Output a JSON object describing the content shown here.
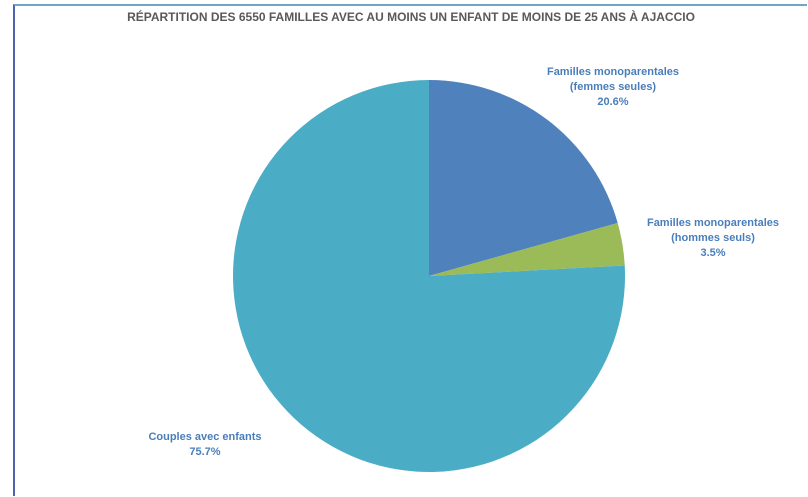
{
  "chart_data": {
    "type": "pie",
    "title": "RÉPARTITION DES 6550 FAMILLES AVEC AU MOINS UN ENFANT DE MOINS DE 25 ANS À AJACCIO",
    "categories": [
      "Familles monoparentales (femmes seules)",
      "Familles monoparentales (hommes seuls)",
      "Couples avec enfants"
    ],
    "values": [
      20.6,
      3.5,
      75.7
    ],
    "value_labels": [
      "20.6%",
      "3.5%",
      "75.7%"
    ],
    "colors": [
      "#4f81bd",
      "#9bbb59",
      "#4bacc6"
    ]
  }
}
